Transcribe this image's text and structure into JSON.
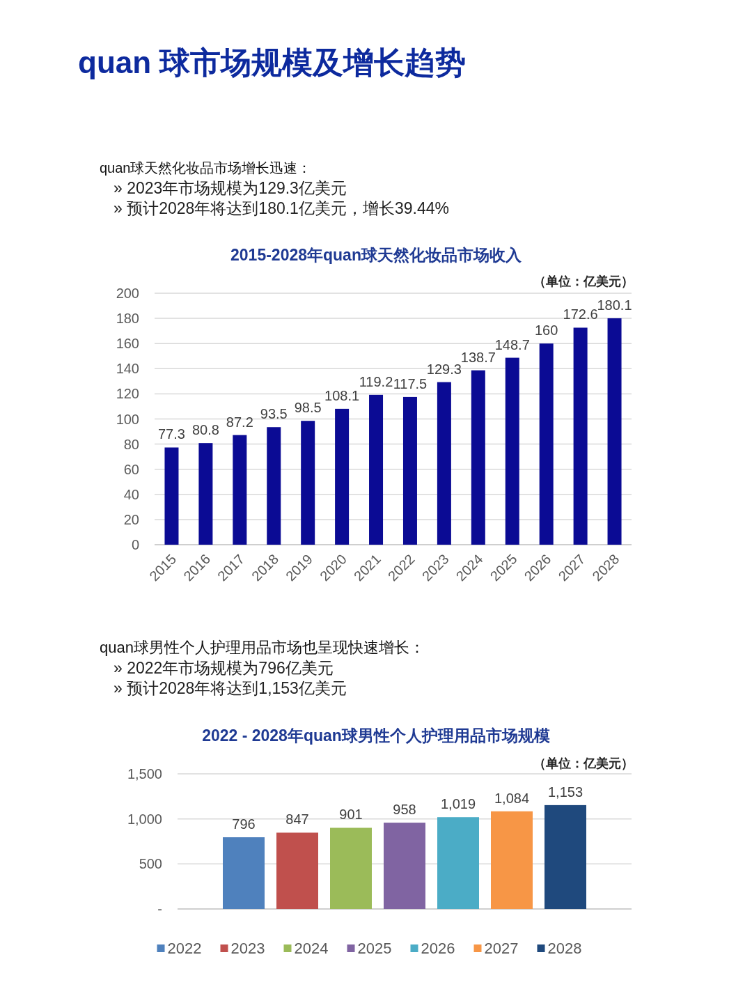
{
  "chart_data": [
    {
      "type": "bar",
      "title": "2015-2028年quan球天然化妆品市场收入",
      "annotations": [
        "quan 球市场规模及增长趋势",
        "quan球天然化妆品市场增长迅速：",
        "»  2023年市场规模为129.3亿美元",
        "»  预计2028年将达到180.1亿美元，增长39.44%",
        "（单位：亿美元）"
      ],
      "categories": [
        "2015",
        "2016",
        "2017",
        "2018",
        "2019",
        "2020",
        "2021",
        "2022",
        "2023",
        "2024",
        "2025",
        "2026",
        "2027",
        "2028"
      ],
      "values": [
        77.3,
        80.8,
        87.2,
        93.5,
        98.5,
        108.1,
        119.2,
        117.5,
        129.3,
        138.7,
        148.7,
        160,
        172.6,
        180.1
      ],
      "color": "#0b0b94",
      "data_labels": true,
      "ylim": [
        0,
        200
      ],
      "yticks": [
        0,
        20,
        40,
        60,
        80,
        100,
        120,
        140,
        160,
        180,
        200
      ],
      "grid": "y"
    },
    {
      "type": "bar",
      "title": "2022 - 2028年quan球男性个人护理用品市场规模",
      "annotations": [
        "quan球男性个人护理用品市场也呈现快速增长：",
        "»  2022年市场规模为796亿美元",
        "»  预计2028年将达到1,153亿美元",
        "（单位：亿美元）"
      ],
      "categories": [
        null
      ],
      "series": [
        {
          "name": "2022",
          "color": "#4f81bd",
          "values": [
            796
          ],
          "value_labels": [
            "796"
          ]
        },
        {
          "name": "2023",
          "color": "#c0504d",
          "values": [
            847
          ],
          "value_labels": [
            "847"
          ]
        },
        {
          "name": "2024",
          "color": "#9bbb59",
          "values": [
            901
          ],
          "value_labels": [
            "901"
          ]
        },
        {
          "name": "2025",
          "color": "#8064a2",
          "values": [
            958
          ],
          "value_labels": [
            "958"
          ]
        },
        {
          "name": "2026",
          "color": "#4bacc6",
          "values": [
            1019
          ],
          "value_labels": [
            "1,019"
          ]
        },
        {
          "name": "2027",
          "color": "#f79646",
          "values": [
            1084
          ],
          "value_labels": [
            "1,084"
          ]
        },
        {
          "name": "2028",
          "color": "#1f497d",
          "values": [
            1153
          ],
          "value_labels": [
            "1,153"
          ]
        }
      ],
      "ylim": [
        0,
        1500
      ],
      "yticks": [
        {
          "value": 0,
          "label": "-"
        },
        500,
        {
          "value": 1000,
          "label": "1,000"
        },
        {
          "value": 1500,
          "label": "1,500"
        }
      ],
      "grid": "y",
      "legend": "bottom"
    }
  ]
}
